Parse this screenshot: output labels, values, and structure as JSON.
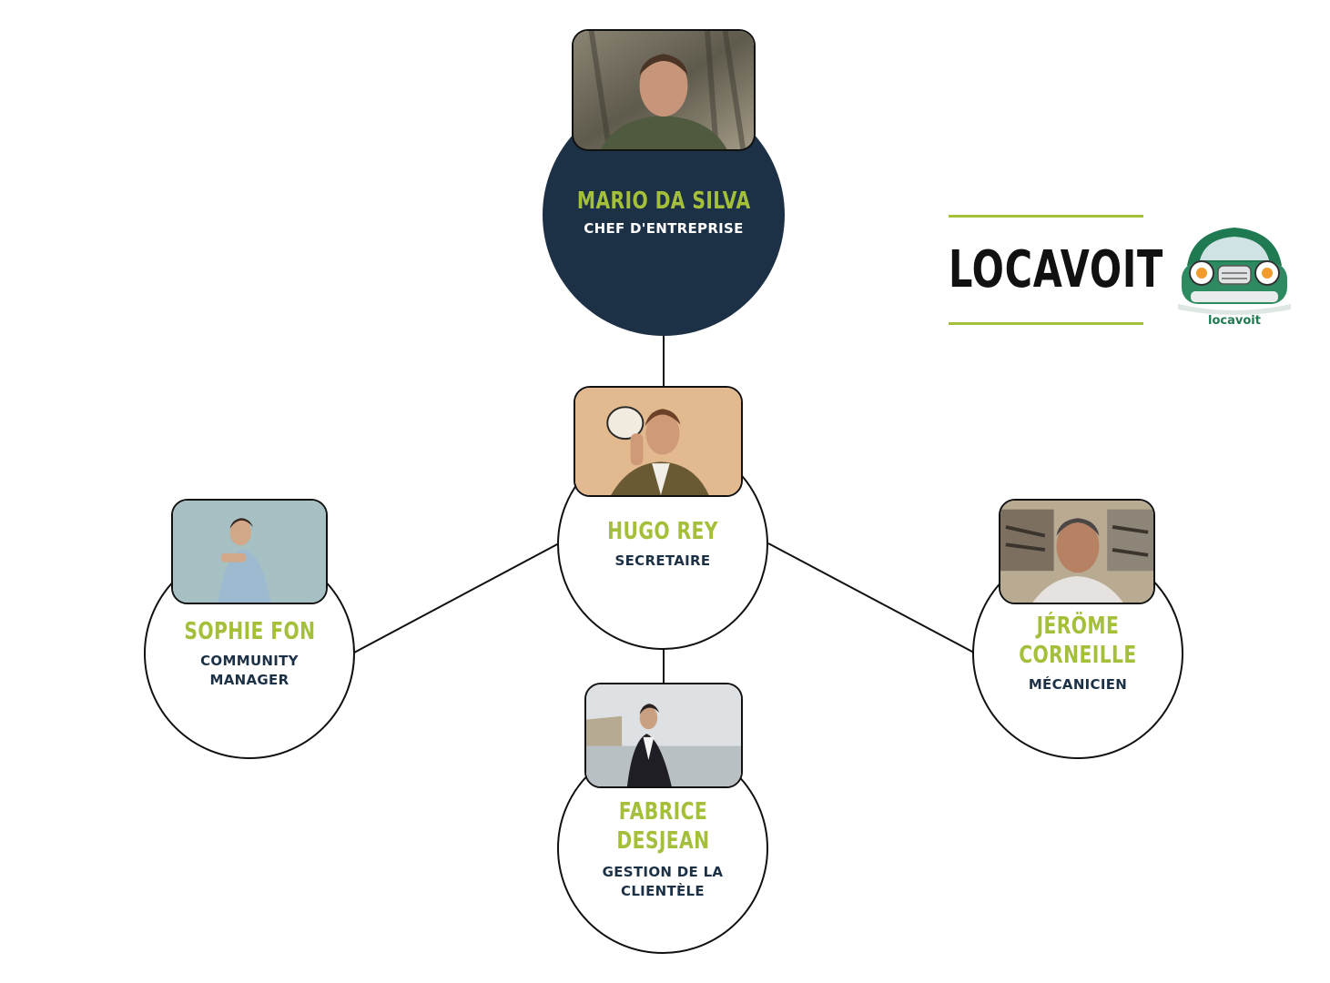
{
  "company": {
    "name": "LOCAVOIT",
    "logo_text": "locavoit",
    "accent_color": "#a4c03b",
    "navy_color": "#1c3146"
  },
  "people": {
    "ceo": {
      "name": "MARIO DA SILVA",
      "role": "CHEF D'ENTREPRISE"
    },
    "secretary": {
      "name": "HUGO REY",
      "role": "SECRETAIRE"
    },
    "community": {
      "name": "SOPHIE FON",
      "role": "COMMUNITY\nMANAGER"
    },
    "mechanic": {
      "name": "JÉRÖME\nCORNEILLE",
      "role": "MÉCANICIEN"
    },
    "customer": {
      "name": "FABRICE\nDESJEAN",
      "role": "GESTION DE LA\nCLIENTÈLE"
    }
  }
}
